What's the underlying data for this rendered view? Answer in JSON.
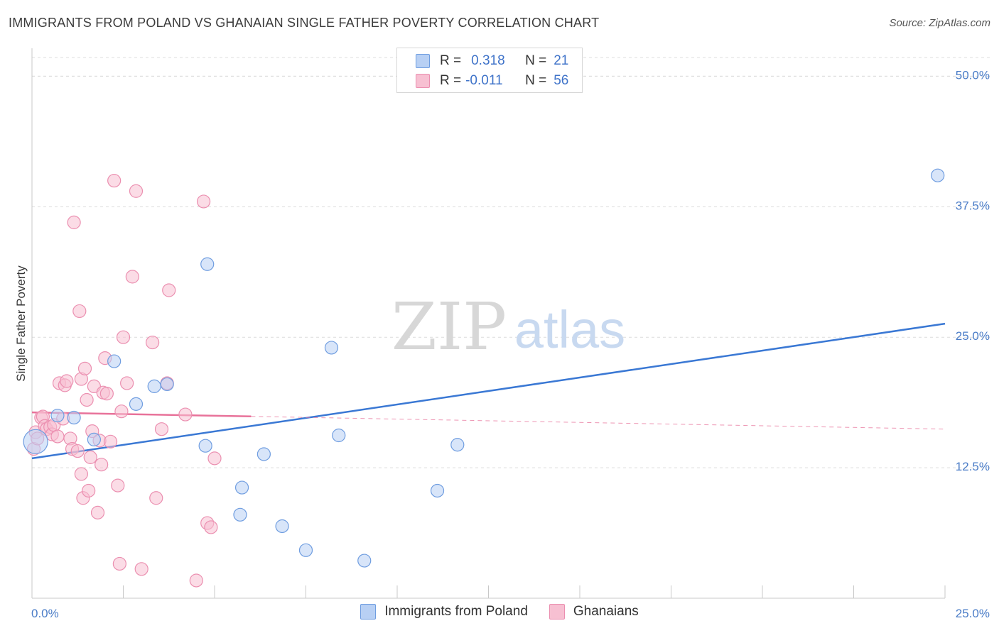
{
  "header": {
    "title": "IMMIGRANTS FROM POLAND VS GHANAIAN SINGLE FATHER POVERTY CORRELATION CHART",
    "source": "Source: ZipAtlas.com"
  },
  "legend": {
    "rows": [
      {
        "r_label": "R =",
        "r_value": "0.318",
        "n_label": "N =",
        "n_value": "21"
      },
      {
        "r_label": "R =",
        "r_value": "-0.011",
        "n_label": "N =",
        "n_value": "56"
      }
    ]
  },
  "bottom_legend": {
    "items": [
      "Immigrants from Poland",
      "Ghanaians"
    ]
  },
  "watermark": {
    "zip": "ZIP",
    "atlas": "atlas"
  },
  "colors": {
    "blue": "#3a78d4",
    "blue_fill": "#b8d0f4",
    "pink": "#e8729a",
    "pink_fill": "#f7c0d2",
    "grid": "#dcdcdc",
    "tick_text": "#4a7cc7"
  },
  "chart_data": {
    "type": "scatter",
    "title": "IMMIGRANTS FROM POLAND VS GHANAIAN SINGLE FATHER POVERTY CORRELATION CHART",
    "xlabel": "",
    "ylabel": "Single Father Poverty",
    "xlim": [
      0,
      25
    ],
    "ylim": [
      0,
      52
    ],
    "x_ticks_labeled": [
      "0.0%",
      "25.0%"
    ],
    "y_ticks": [
      12.5,
      25.0,
      37.5,
      50.0
    ],
    "y_tick_labels": [
      "12.5%",
      "25.0%",
      "37.5%",
      "50.0%"
    ],
    "grid": "horizontal dashed",
    "legend_position": "top-center",
    "series": [
      {
        "name": "Immigrants from Poland",
        "color": "#3a78d4",
        "r": 0.318,
        "n": 21,
        "trend": {
          "x": [
            0,
            25
          ],
          "y": [
            13.4,
            26.3
          ],
          "dashed_from": null
        },
        "points": [
          {
            "x": 0.1,
            "y": 15.0,
            "big": true
          },
          {
            "x": 0.7,
            "y": 17.5
          },
          {
            "x": 1.15,
            "y": 17.3
          },
          {
            "x": 1.7,
            "y": 15.2
          },
          {
            "x": 2.25,
            "y": 22.7
          },
          {
            "x": 2.85,
            "y": 18.6
          },
          {
            "x": 3.35,
            "y": 20.3
          },
          {
            "x": 3.7,
            "y": 20.5
          },
          {
            "x": 4.75,
            "y": 14.6
          },
          {
            "x": 4.8,
            "y": 32.0
          },
          {
            "x": 5.7,
            "y": 8.0
          },
          {
            "x": 5.75,
            "y": 10.6
          },
          {
            "x": 6.35,
            "y": 13.8
          },
          {
            "x": 6.85,
            "y": 6.9
          },
          {
            "x": 7.5,
            "y": 4.6
          },
          {
            "x": 8.2,
            "y": 24.0
          },
          {
            "x": 8.4,
            "y": 15.6
          },
          {
            "x": 9.1,
            "y": 3.6
          },
          {
            "x": 11.1,
            "y": 10.3
          },
          {
            "x": 11.65,
            "y": 14.7
          },
          {
            "x": 24.8,
            "y": 40.5
          }
        ]
      },
      {
        "name": "Ghanaians",
        "color": "#e8729a",
        "r": -0.011,
        "n": 56,
        "trend": {
          "x": [
            0,
            25
          ],
          "y": [
            17.8,
            16.2
          ],
          "solid_until": 6.0
        },
        "points": [
          {
            "x": 0.05,
            "y": 14.3
          },
          {
            "x": 0.1,
            "y": 15.9
          },
          {
            "x": 0.15,
            "y": 15.3
          },
          {
            "x": 0.25,
            "y": 17.3
          },
          {
            "x": 0.3,
            "y": 17.4
          },
          {
            "x": 0.35,
            "y": 16.5
          },
          {
            "x": 0.4,
            "y": 16.2
          },
          {
            "x": 0.5,
            "y": 16.4
          },
          {
            "x": 0.55,
            "y": 15.7
          },
          {
            "x": 0.6,
            "y": 16.6
          },
          {
            "x": 0.7,
            "y": 15.5
          },
          {
            "x": 0.75,
            "y": 20.6
          },
          {
            "x": 0.85,
            "y": 17.2
          },
          {
            "x": 0.9,
            "y": 20.4
          },
          {
            "x": 0.95,
            "y": 20.8
          },
          {
            "x": 1.05,
            "y": 15.3
          },
          {
            "x": 1.1,
            "y": 14.3
          },
          {
            "x": 1.15,
            "y": 36.0
          },
          {
            "x": 1.25,
            "y": 14.1
          },
          {
            "x": 1.3,
            "y": 27.5
          },
          {
            "x": 1.35,
            "y": 11.9
          },
          {
            "x": 1.35,
            "y": 21.0
          },
          {
            "x": 1.4,
            "y": 9.6
          },
          {
            "x": 1.45,
            "y": 22.0
          },
          {
            "x": 1.5,
            "y": 19.0
          },
          {
            "x": 1.55,
            "y": 10.3
          },
          {
            "x": 1.6,
            "y": 13.5
          },
          {
            "x": 1.65,
            "y": 16.0
          },
          {
            "x": 1.7,
            "y": 20.3
          },
          {
            "x": 1.8,
            "y": 8.2
          },
          {
            "x": 1.85,
            "y": 15.1
          },
          {
            "x": 1.9,
            "y": 12.8
          },
          {
            "x": 1.95,
            "y": 19.7
          },
          {
            "x": 2.05,
            "y": 19.6
          },
          {
            "x": 2.0,
            "y": 23.0
          },
          {
            "x": 2.15,
            "y": 15.0
          },
          {
            "x": 2.25,
            "y": 40.0
          },
          {
            "x": 2.35,
            "y": 10.8
          },
          {
            "x": 2.4,
            "y": 3.3
          },
          {
            "x": 2.45,
            "y": 17.9
          },
          {
            "x": 2.5,
            "y": 25.0
          },
          {
            "x": 2.6,
            "y": 20.6
          },
          {
            "x": 2.75,
            "y": 30.8
          },
          {
            "x": 2.85,
            "y": 39.0
          },
          {
            "x": 3.0,
            "y": 2.8
          },
          {
            "x": 3.3,
            "y": 24.5
          },
          {
            "x": 3.4,
            "y": 9.6
          },
          {
            "x": 3.55,
            "y": 16.2
          },
          {
            "x": 3.7,
            "y": 20.6
          },
          {
            "x": 3.75,
            "y": 29.5
          },
          {
            "x": 4.2,
            "y": 17.6
          },
          {
            "x": 4.5,
            "y": 1.7
          },
          {
            "x": 4.7,
            "y": 38.0
          },
          {
            "x": 4.8,
            "y": 7.2
          },
          {
            "x": 4.9,
            "y": 6.8
          },
          {
            "x": 5.0,
            "y": 13.4
          }
        ]
      }
    ]
  }
}
